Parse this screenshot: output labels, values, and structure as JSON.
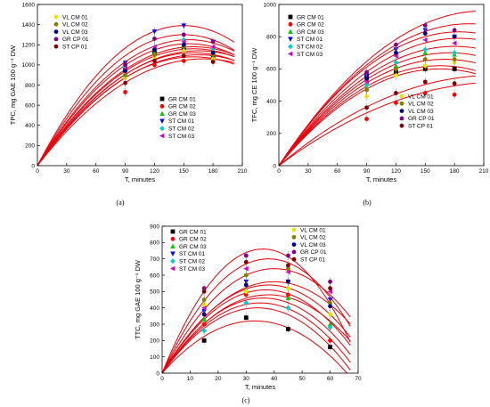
{
  "chart_data": [
    {
      "panel_label": "(a)",
      "type": "scatter",
      "xlabel": "T, minutes",
      "ylabel": "TPC, mg GAE 100 g⁻¹ DW",
      "xlim": [
        0,
        210
      ],
      "ylim": [
        0,
        1600
      ],
      "xticks": [
        0,
        30,
        60,
        90,
        120,
        150,
        180,
        210
      ],
      "yticks": [
        0,
        200,
        400,
        600,
        800,
        1000,
        1200,
        1400,
        1600
      ],
      "legends": [
        [
          "VL CM 01",
          "VL CM 02",
          "VL CM 03",
          "GR CP 01",
          "ST CP 01"
        ],
        [
          "GR CM 01",
          "GR CM 02",
          "GR CM 03",
          "ST CM 01",
          "ST CM 02",
          "ST CM 03"
        ]
      ],
      "series": [
        {
          "name": "GR CM 01",
          "color": "#000000",
          "marker": "square",
          "x": [
            90,
            120,
            150,
            180
          ],
          "y": [
            950,
            1120,
            1160,
            1080
          ]
        },
        {
          "name": "GR CM 02",
          "color": "#ff0000",
          "marker": "circle",
          "x": [
            90,
            120,
            150,
            180
          ],
          "y": [
            730,
            1000,
            1040,
            1050
          ]
        },
        {
          "name": "GR CM 03",
          "color": "#00cc00",
          "marker": "triangle-up",
          "x": [
            90,
            120,
            150,
            180
          ],
          "y": [
            900,
            1120,
            1210,
            1140
          ]
        },
        {
          "name": "ST CM 01",
          "color": "#0000ff",
          "marker": "triangle-down",
          "x": [
            90,
            120,
            150,
            180
          ],
          "y": [
            1020,
            1330,
            1390,
            1230
          ]
        },
        {
          "name": "ST CM 02",
          "color": "#00cccc",
          "marker": "diamond",
          "x": [
            90,
            120,
            150,
            180
          ],
          "y": [
            980,
            1160,
            1250,
            1160
          ]
        },
        {
          "name": "ST CM 03",
          "color": "#cc00cc",
          "marker": "triangle-left",
          "x": [
            90,
            120,
            150,
            180
          ],
          "y": [
            960,
            1180,
            1230,
            1180
          ]
        },
        {
          "name": "VL CM 01",
          "color": "#e6e600",
          "marker": "circle",
          "x": [
            90,
            120,
            150,
            180
          ],
          "y": [
            870,
            1080,
            1140,
            1060
          ]
        },
        {
          "name": "VL CM 02",
          "color": "#808000",
          "marker": "circle",
          "x": [
            90,
            120,
            150,
            180
          ],
          "y": [
            900,
            1100,
            1180,
            1100
          ]
        },
        {
          "name": "VL CM 03",
          "color": "#000080",
          "marker": "circle",
          "x": [
            90,
            120,
            150,
            180
          ],
          "y": [
            940,
            1150,
            1200,
            1120
          ]
        },
        {
          "name": "GR CP 01",
          "color": "#800080",
          "marker": "circle",
          "x": [
            90,
            120,
            150,
            180
          ],
          "y": [
            1000,
            1260,
            1300,
            1230
          ]
        },
        {
          "name": "ST CP 01",
          "color": "#800000",
          "marker": "circle",
          "x": [
            90,
            120,
            150,
            180
          ],
          "y": [
            820,
            1040,
            1090,
            1030
          ]
        }
      ],
      "fit_curves": [
        {
          "peak": 1390,
          "at": 150
        },
        {
          "peak": 1300,
          "at": 150
        },
        {
          "peak": 1250,
          "at": 155
        },
        {
          "peak": 1210,
          "at": 155
        },
        {
          "peak": 1180,
          "at": 160
        },
        {
          "peak": 1160,
          "at": 160
        },
        {
          "peak": 1140,
          "at": 165
        },
        {
          "peak": 1120,
          "at": 160
        },
        {
          "peak": 1100,
          "at": 165
        },
        {
          "peak": 1080,
          "at": 160
        },
        {
          "peak": 1060,
          "at": 170
        }
      ]
    },
    {
      "panel_label": "(b)",
      "type": "scatter",
      "xlabel": "T, minutes",
      "ylabel": "TFC, mg CE 100 g⁻¹ DW",
      "xlim": [
        0,
        210
      ],
      "ylim": [
        0,
        1000
      ],
      "xticks": [
        0,
        30,
        60,
        90,
        120,
        150,
        180,
        210
      ],
      "yticks": [
        0,
        200,
        400,
        600,
        800,
        1000
      ],
      "legends": [
        [
          "GR CM 01",
          "GR CM 02",
          "GR CM 03",
          "ST CM 01",
          "ST CM 02",
          "ST CM 03"
        ],
        [
          "VL CM 01",
          "VL CM 02",
          "VL CM 03",
          "GR CP 01",
          "ST CP 01"
        ]
      ],
      "series": [
        {
          "name": "GR CM 01",
          "color": "#000000",
          "marker": "square",
          "x": [
            90,
            120,
            150,
            180
          ],
          "y": [
            560,
            580,
            600,
            600
          ]
        },
        {
          "name": "GR CM 02",
          "color": "#ff0000",
          "marker": "circle",
          "x": [
            90,
            120,
            150,
            180
          ],
          "y": [
            290,
            390,
            450,
            440
          ]
        },
        {
          "name": "GR CM 03",
          "color": "#00cc00",
          "marker": "triangle-up",
          "x": [
            90,
            120,
            150,
            180
          ],
          "y": [
            480,
            620,
            700,
            690
          ]
        },
        {
          "name": "ST CM 01",
          "color": "#0000ff",
          "marker": "triangle-down",
          "x": [
            90,
            120,
            150,
            180
          ],
          "y": [
            560,
            720,
            840,
            800
          ]
        },
        {
          "name": "ST CM 02",
          "color": "#00cccc",
          "marker": "diamond",
          "x": [
            90,
            120,
            150,
            180
          ],
          "y": [
            500,
            640,
            720,
            700
          ]
        },
        {
          "name": "ST CM 03",
          "color": "#cc00cc",
          "marker": "triangle-left",
          "x": [
            90,
            120,
            150,
            180
          ],
          "y": [
            520,
            680,
            780,
            760
          ]
        },
        {
          "name": "VL CM 01",
          "color": "#e6e600",
          "marker": "circle",
          "x": [
            90,
            120,
            150,
            180
          ],
          "y": [
            430,
            560,
            620,
            640
          ]
        },
        {
          "name": "VL CM 02",
          "color": "#808000",
          "marker": "circle",
          "x": [
            90,
            120,
            150,
            180
          ],
          "y": [
            470,
            600,
            660,
            660
          ]
        },
        {
          "name": "VL CM 03",
          "color": "#000080",
          "marker": "circle",
          "x": [
            90,
            120,
            150,
            180
          ],
          "y": [
            540,
            700,
            820,
            800
          ]
        },
        {
          "name": "GR CP 01",
          "color": "#800080",
          "marker": "circle",
          "x": [
            90,
            120,
            150,
            180
          ],
          "y": [
            580,
            750,
            870,
            840
          ]
        },
        {
          "name": "ST CP 01",
          "color": "#800000",
          "marker": "circle",
          "x": [
            90,
            120,
            150,
            180
          ],
          "y": [
            360,
            450,
            520,
            510
          ]
        }
      ],
      "fit_curves": [
        {
          "peak": 960,
          "at": 210
        },
        {
          "peak": 880,
          "at": 195
        },
        {
          "peak": 830,
          "at": 185
        },
        {
          "peak": 790,
          "at": 185
        },
        {
          "peak": 740,
          "at": 180
        },
        {
          "peak": 700,
          "at": 175
        },
        {
          "peak": 660,
          "at": 170
        },
        {
          "peak": 620,
          "at": 165
        },
        {
          "peak": 600,
          "at": 165
        },
        {
          "peak": 560,
          "at": 220
        },
        {
          "peak": 520,
          "at": 230
        }
      ]
    },
    {
      "panel_label": "(c)",
      "type": "scatter",
      "xlabel": "T, minutes",
      "ylabel": "TTC, mg GAE 100 g⁻¹ DW",
      "xlim": [
        0,
        70
      ],
      "ylim": [
        0,
        900
      ],
      "xticks": [
        0,
        10,
        20,
        30,
        40,
        50,
        60,
        70
      ],
      "yticks": [
        0,
        100,
        200,
        300,
        400,
        500,
        600,
        700,
        800,
        900
      ],
      "legends": [
        [
          "GR CM 01",
          "GR CM 02",
          "GR CM 03",
          "ST CM 01",
          "ST CM 02",
          "ST CM 03"
        ],
        [
          "VL CM 01",
          "VL CM 02",
          "VL CM 03",
          "GR CP 01",
          "ST CP 01"
        ]
      ],
      "series": [
        {
          "name": "GR CM 01",
          "color": "#000000",
          "marker": "square",
          "x": [
            15,
            30,
            45,
            60
          ],
          "y": [
            200,
            340,
            270,
            160
          ]
        },
        {
          "name": "GR CM 02",
          "color": "#ff0000",
          "marker": "circle",
          "x": [
            15,
            30,
            45,
            60
          ],
          "y": [
            300,
            480,
            480,
            200
          ]
        },
        {
          "name": "GR CM 03",
          "color": "#00cc00",
          "marker": "triangle-up",
          "x": [
            15,
            30,
            45,
            60
          ],
          "y": [
            330,
            510,
            460,
            300
          ]
        },
        {
          "name": "ST CM 01",
          "color": "#0000ff",
          "marker": "triangle-down",
          "x": [
            15,
            30,
            45,
            60
          ],
          "y": [
            380,
            560,
            560,
            450
          ]
        },
        {
          "name": "ST CM 02",
          "color": "#00cccc",
          "marker": "diamond",
          "x": [
            15,
            30,
            45,
            60
          ],
          "y": [
            260,
            430,
            400,
            280
          ]
        },
        {
          "name": "ST CM 03",
          "color": "#cc00cc",
          "marker": "triangle-left",
          "x": [
            15,
            30,
            45,
            60
          ],
          "y": [
            400,
            640,
            620,
            500
          ]
        },
        {
          "name": "VL CM 01",
          "color": "#e6e600",
          "marker": "circle",
          "x": [
            15,
            30,
            45,
            60
          ],
          "y": [
            420,
            500,
            520,
            360
          ]
        },
        {
          "name": "VL CM 02",
          "color": "#808000",
          "marker": "circle",
          "x": [
            15,
            30,
            45,
            60
          ],
          "y": [
            450,
            600,
            640,
            430
          ]
        },
        {
          "name": "VL CM 03",
          "color": "#000080",
          "marker": "circle",
          "x": [
            15,
            30,
            45,
            60
          ],
          "y": [
            360,
            540,
            560,
            410
          ]
        },
        {
          "name": "GR CP 01",
          "color": "#800080",
          "marker": "circle",
          "x": [
            15,
            30,
            45,
            60
          ],
          "y": [
            520,
            720,
            720,
            560
          ]
        },
        {
          "name": "ST CP 01",
          "color": "#800000",
          "marker": "circle",
          "x": [
            15,
            30,
            45,
            60
          ],
          "y": [
            500,
            680,
            660,
            520
          ]
        }
      ],
      "fit_curves": [
        {
          "peak": 760,
          "at": 36
        },
        {
          "peak": 700,
          "at": 38
        },
        {
          "peak": 640,
          "at": 40
        },
        {
          "peak": 560,
          "at": 40
        },
        {
          "peak": 540,
          "at": 38
        },
        {
          "peak": 510,
          "at": 37
        },
        {
          "peak": 480,
          "at": 38
        },
        {
          "peak": 460,
          "at": 36
        },
        {
          "peak": 430,
          "at": 35
        },
        {
          "peak": 400,
          "at": 34
        },
        {
          "peak": 320,
          "at": 33
        }
      ]
    }
  ]
}
